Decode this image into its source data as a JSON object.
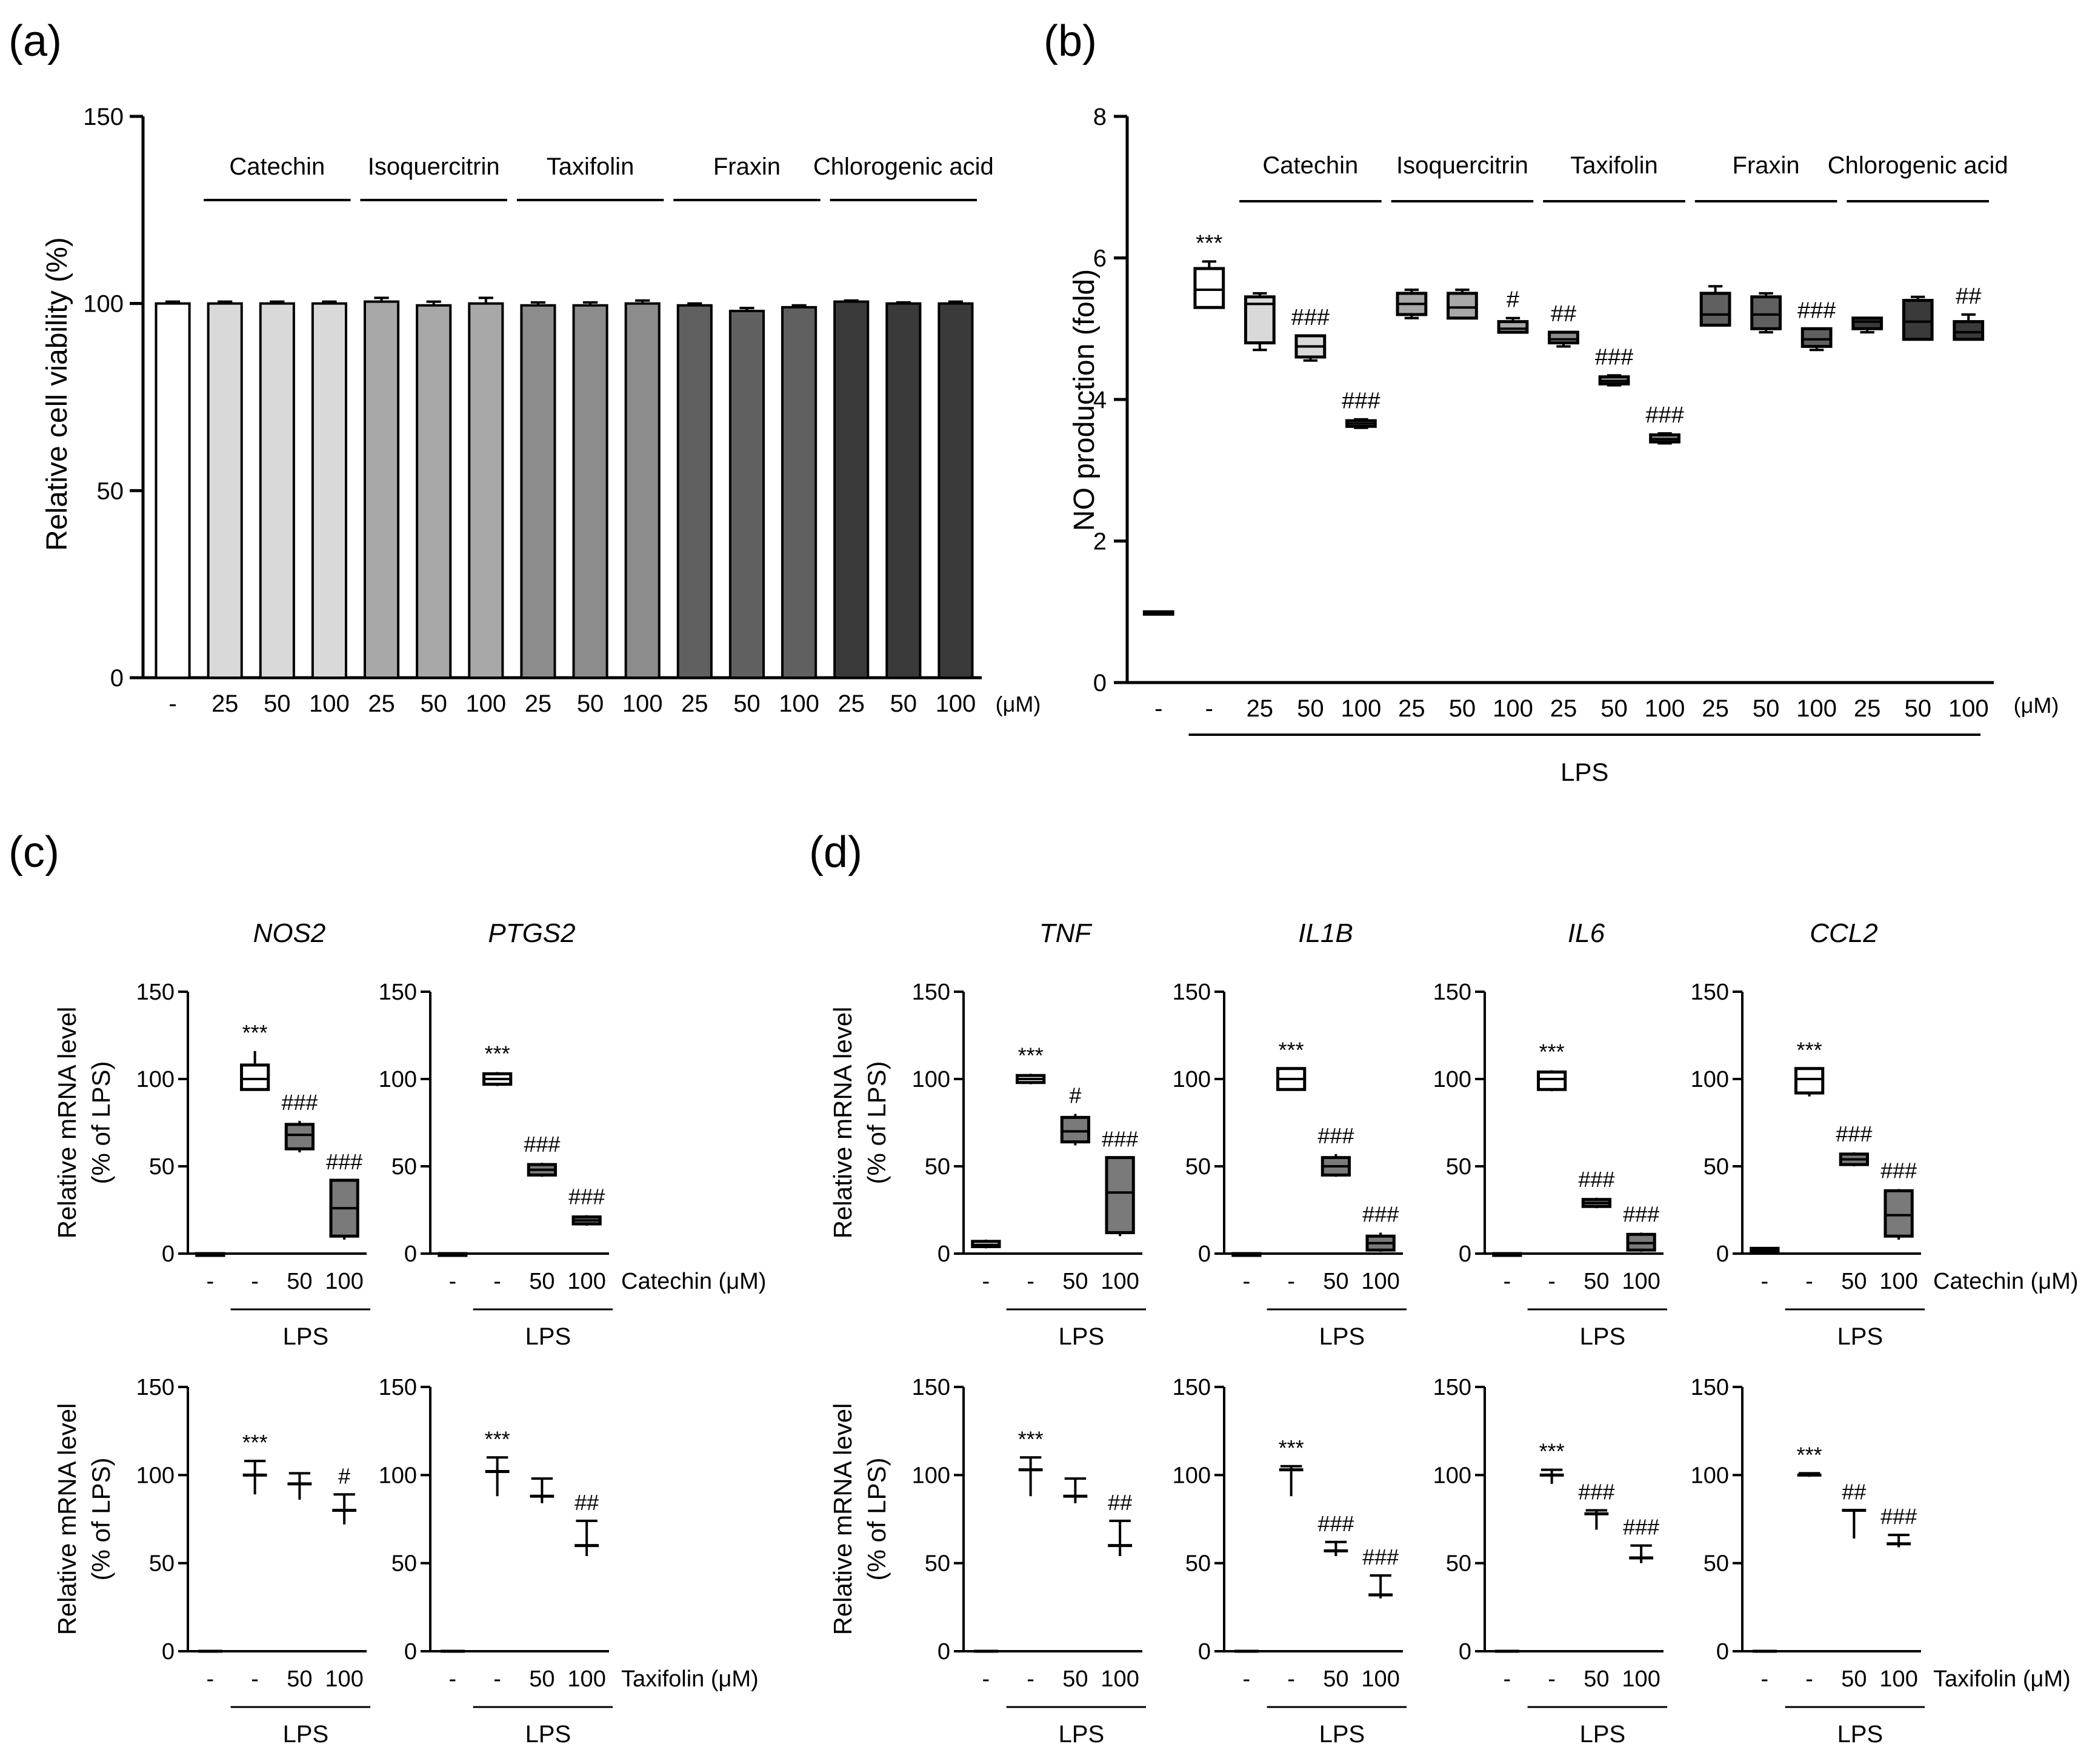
{
  "panels": {
    "a": "(a)",
    "b": "(b)",
    "c": "(c)",
    "d": "(d)"
  },
  "chart_data": [
    {
      "id": "a",
      "type": "bar",
      "ylabel": "Relative cell viability (%)",
      "ylim": [
        0,
        150
      ],
      "yticks": [
        0,
        50,
        100,
        150
      ],
      "unit": "(μM)",
      "categories": [
        "-",
        "25",
        "50",
        "100",
        "25",
        "50",
        "100",
        "25",
        "50",
        "100",
        "25",
        "50",
        "100",
        "25",
        "50",
        "100"
      ],
      "values": [
        100,
        100,
        100,
        100,
        100.5,
        99.5,
        100,
        99.5,
        99.5,
        100,
        99.5,
        98,
        99,
        100.5,
        100,
        100
      ],
      "errors": [
        0.5,
        0.5,
        0.5,
        0.5,
        1.0,
        1.0,
        1.5,
        0.8,
        0.8,
        0.8,
        0.5,
        0.8,
        0.5,
        0.3,
        0.3,
        0.5
      ],
      "groups": [
        "Catechin",
        "Isoquercitrin",
        "Taxifolin",
        "Fraxin",
        "Chlorogenic acid"
      ],
      "colors": [
        "#ffffff",
        "#d9d9d9",
        "#d9d9d9",
        "#d9d9d9",
        "#a8a8a8",
        "#a8a8a8",
        "#a8a8a8",
        "#8c8c8c",
        "#8c8c8c",
        "#8c8c8c",
        "#606060",
        "#606060",
        "#606060",
        "#3a3a3a",
        "#3a3a3a",
        "#3a3a3a"
      ]
    },
    {
      "id": "b",
      "type": "box",
      "ylabel": "NO production  (fold)",
      "ylim": [
        0,
        8
      ],
      "yticks": [
        0,
        2,
        4,
        6,
        8
      ],
      "unit": "(μM)",
      "lps_label": "LPS",
      "categories": [
        "-",
        "-",
        "25",
        "50",
        "100",
        "25",
        "50",
        "100",
        "25",
        "50",
        "100",
        "25",
        "50",
        "100",
        "25",
        "50",
        "100"
      ],
      "boxes": [
        {
          "min": 1.0,
          "q1": 1.0,
          "med": 1.0,
          "q3": 1.0,
          "max": 1.0,
          "color": "#ffffff",
          "sig": ""
        },
        {
          "min": 5.3,
          "q1": 5.3,
          "med": 5.55,
          "q3": 5.85,
          "max": 5.95,
          "color": "#ffffff",
          "sig": "***"
        },
        {
          "min": 4.7,
          "q1": 4.8,
          "med": 5.35,
          "q3": 5.45,
          "max": 5.5,
          "color": "#d9d9d9",
          "sig": ""
        },
        {
          "min": 4.55,
          "q1": 4.6,
          "med": 4.75,
          "q3": 4.9,
          "max": 4.9,
          "color": "#d9d9d9",
          "sig": "###"
        },
        {
          "min": 3.6,
          "q1": 3.62,
          "med": 3.66,
          "q3": 3.7,
          "max": 3.72,
          "color": "#d9d9d9",
          "sig": "###"
        },
        {
          "min": 5.15,
          "q1": 5.2,
          "med": 5.35,
          "q3": 5.5,
          "max": 5.55,
          "color": "#a8a8a8",
          "sig": ""
        },
        {
          "min": 5.15,
          "q1": 5.15,
          "med": 5.3,
          "q3": 5.5,
          "max": 5.55,
          "color": "#a8a8a8",
          "sig": ""
        },
        {
          "min": 4.95,
          "q1": 4.95,
          "med": 5.0,
          "q3": 5.1,
          "max": 5.15,
          "color": "#a8a8a8",
          "sig": "#"
        },
        {
          "min": 4.75,
          "q1": 4.8,
          "med": 4.85,
          "q3": 4.95,
          "max": 4.95,
          "color": "#8c8c8c",
          "sig": "##"
        },
        {
          "min": 4.2,
          "q1": 4.22,
          "med": 4.26,
          "q3": 4.32,
          "max": 4.34,
          "color": "#8c8c8c",
          "sig": "###"
        },
        {
          "min": 3.38,
          "q1": 3.4,
          "med": 3.44,
          "q3": 3.5,
          "max": 3.52,
          "color": "#8c8c8c",
          "sig": "###"
        },
        {
          "min": 5.05,
          "q1": 5.05,
          "med": 5.2,
          "q3": 5.5,
          "max": 5.6,
          "color": "#606060",
          "sig": ""
        },
        {
          "min": 4.95,
          "q1": 5.0,
          "med": 5.2,
          "q3": 5.45,
          "max": 5.5,
          "color": "#606060",
          "sig": ""
        },
        {
          "min": 4.7,
          "q1": 4.75,
          "med": 4.85,
          "q3": 5.0,
          "max": 5.0,
          "color": "#606060",
          "sig": "###"
        },
        {
          "min": 4.95,
          "q1": 5.0,
          "med": 5.1,
          "q3": 5.15,
          "max": 5.15,
          "color": "#3a3a3a",
          "sig": ""
        },
        {
          "min": 4.85,
          "q1": 4.85,
          "med": 5.1,
          "q3": 5.4,
          "max": 5.45,
          "color": "#3a3a3a",
          "sig": ""
        },
        {
          "min": 4.85,
          "q1": 4.85,
          "med": 4.95,
          "q3": 5.1,
          "max": 5.2,
          "color": "#3a3a3a",
          "sig": "##"
        }
      ],
      "groups": [
        "Catechin",
        "Isoquercitrin",
        "Taxifolin",
        "Fraxin",
        "Chlorogenic acid"
      ]
    }
  ],
  "small_plots": {
    "ylabel1": "Relative mRNA level",
    "ylabel2": "(% of LPS)",
    "ylim": [
      0,
      150
    ],
    "yticks": [
      0,
      50,
      100,
      150
    ],
    "xlabels": [
      "-",
      "-",
      "50",
      "100"
    ],
    "lps_label": "LPS",
    "catechin_unit": "Catechin (μM)",
    "taxifolin_unit": "Taxifolin (μM)",
    "plots": [
      {
        "title": "NOS2",
        "row": "catechin",
        "boxes": [
          {
            "min": 0,
            "q1": 0,
            "med": 0,
            "q3": 0,
            "max": 0,
            "fill": "#ffffff"
          },
          {
            "min": 94,
            "q1": 94,
            "med": 100,
            "q3": 108,
            "max": 116,
            "fill": "#ffffff"
          },
          {
            "min": 58,
            "q1": 60,
            "med": 68,
            "q3": 74,
            "max": 76,
            "fill": "#7a7a7a"
          },
          {
            "min": 8,
            "q1": 10,
            "med": 26,
            "q3": 42,
            "max": 42,
            "fill": "#7a7a7a"
          }
        ],
        "sigs": [
          "",
          "***",
          "###",
          "###"
        ]
      },
      {
        "title": "PTGS2",
        "row": "catechin",
        "boxes": [
          {
            "min": 0,
            "q1": 0,
            "med": 0,
            "q3": 0,
            "max": 0,
            "fill": "#ffffff"
          },
          {
            "min": 96,
            "q1": 97,
            "med": 100,
            "q3": 103,
            "max": 104,
            "fill": "#ffffff"
          },
          {
            "min": 44,
            "q1": 45,
            "med": 48,
            "q3": 51,
            "max": 52,
            "fill": "#7a7a7a"
          },
          {
            "min": 16,
            "q1": 17,
            "med": 19,
            "q3": 21,
            "max": 22,
            "fill": "#7a7a7a"
          }
        ],
        "sigs": [
          "",
          "***",
          "###",
          "###"
        ]
      },
      {
        "title": "NOS2",
        "row": "taxifolin",
        "showTitle": false,
        "type": "errbar",
        "points": [
          {
            "mean": 0,
            "lo": 0,
            "hi": 0
          },
          {
            "mean": 100,
            "lo": 89,
            "hi": 108
          },
          {
            "mean": 95,
            "lo": 86,
            "hi": 101
          },
          {
            "mean": 80,
            "lo": 72,
            "hi": 89
          }
        ],
        "sigs": [
          "",
          "***",
          "",
          "#"
        ]
      },
      {
        "title": "PTGS2",
        "row": "taxifolin",
        "showTitle": false,
        "type": "errbar",
        "points": [
          {
            "mean": 0,
            "lo": 0,
            "hi": 0
          },
          {
            "mean": 102,
            "lo": 88,
            "hi": 110
          },
          {
            "mean": 88,
            "lo": 84,
            "hi": 98
          },
          {
            "mean": 60,
            "lo": 54,
            "hi": 74
          }
        ],
        "sigs": [
          "",
          "***",
          "",
          "##"
        ]
      },
      {
        "title": "TNF",
        "row": "catechin",
        "boxes": [
          {
            "min": 3,
            "q1": 4,
            "med": 5,
            "q3": 7,
            "max": 8,
            "fill": "#ffffff"
          },
          {
            "min": 97,
            "q1": 98,
            "med": 100,
            "q3": 102,
            "max": 103,
            "fill": "#ffffff"
          },
          {
            "min": 62,
            "q1": 64,
            "med": 70,
            "q3": 78,
            "max": 80,
            "fill": "#7a7a7a"
          },
          {
            "min": 10,
            "q1": 12,
            "med": 35,
            "q3": 55,
            "max": 55,
            "fill": "#7a7a7a"
          }
        ],
        "sigs": [
          "",
          "***",
          "#",
          "###"
        ]
      },
      {
        "title": "IL1B",
        "row": "catechin",
        "boxes": [
          {
            "min": 0,
            "q1": 0,
            "med": 0,
            "q3": 0,
            "max": 0,
            "fill": "#ffffff"
          },
          {
            "min": 94,
            "q1": 94,
            "med": 100,
            "q3": 106,
            "max": 106,
            "fill": "#ffffff"
          },
          {
            "min": 44,
            "q1": 45,
            "med": 50,
            "q3": 55,
            "max": 57,
            "fill": "#7a7a7a"
          },
          {
            "min": 1,
            "q1": 2,
            "med": 6,
            "q3": 10,
            "max": 12,
            "fill": "#7a7a7a"
          }
        ],
        "sigs": [
          "",
          "***",
          "###",
          "###"
        ]
      },
      {
        "title": "IL6",
        "row": "catechin",
        "boxes": [
          {
            "min": 0,
            "q1": 0,
            "med": 0,
            "q3": 0,
            "max": 0,
            "fill": "#ffffff"
          },
          {
            "min": 93,
            "q1": 94,
            "med": 100,
            "q3": 104,
            "max": 105,
            "fill": "#ffffff"
          },
          {
            "min": 26,
            "q1": 27,
            "med": 29,
            "q3": 31,
            "max": 32,
            "fill": "#7a7a7a"
          },
          {
            "min": 1,
            "q1": 2,
            "med": 6,
            "q3": 11,
            "max": 12,
            "fill": "#7a7a7a"
          }
        ],
        "sigs": [
          "",
          "***",
          "###",
          "###"
        ]
      },
      {
        "title": "CCL2",
        "row": "catechin",
        "boxes": [
          {
            "min": 1,
            "q1": 1,
            "med": 2,
            "q3": 3,
            "max": 3,
            "fill": "#ffffff"
          },
          {
            "min": 90,
            "q1": 92,
            "med": 100,
            "q3": 106,
            "max": 106,
            "fill": "#ffffff"
          },
          {
            "min": 50,
            "q1": 51,
            "med": 54,
            "q3": 57,
            "max": 58,
            "fill": "#7a7a7a"
          },
          {
            "min": 8,
            "q1": 10,
            "med": 22,
            "q3": 36,
            "max": 37,
            "fill": "#7a7a7a"
          }
        ],
        "sigs": [
          "",
          "***",
          "###",
          "###"
        ]
      },
      {
        "title": "TNF",
        "row": "taxifolin",
        "showTitle": false,
        "type": "errbar",
        "points": [
          {
            "mean": 0,
            "lo": 0,
            "hi": 0
          },
          {
            "mean": 103,
            "lo": 88,
            "hi": 110
          },
          {
            "mean": 88,
            "lo": 84,
            "hi": 98
          },
          {
            "mean": 60,
            "lo": 54,
            "hi": 74
          }
        ],
        "sigs": [
          "",
          "***",
          "",
          "##"
        ]
      },
      {
        "title": "IL1B",
        "row": "taxifolin",
        "showTitle": false,
        "type": "errbar",
        "points": [
          {
            "mean": 0,
            "lo": 0,
            "hi": 0
          },
          {
            "mean": 103,
            "lo": 88,
            "hi": 105
          },
          {
            "mean": 57,
            "lo": 54,
            "hi": 62
          },
          {
            "mean": 32,
            "lo": 30,
            "hi": 43
          }
        ],
        "sigs": [
          "",
          "***",
          "###",
          "###"
        ]
      },
      {
        "title": "IL6",
        "row": "taxifolin",
        "showTitle": false,
        "type": "errbar",
        "points": [
          {
            "mean": 0,
            "lo": 0,
            "hi": 0
          },
          {
            "mean": 100,
            "lo": 95,
            "hi": 103
          },
          {
            "mean": 78,
            "lo": 69,
            "hi": 80
          },
          {
            "mean": 53,
            "lo": 50,
            "hi": 60
          }
        ],
        "sigs": [
          "",
          "***",
          "###",
          "###"
        ]
      },
      {
        "title": "CCL2",
        "row": "taxifolin",
        "showTitle": false,
        "type": "errbar",
        "points": [
          {
            "mean": 0,
            "lo": 0,
            "hi": 0
          },
          {
            "mean": 100,
            "lo": 99,
            "hi": 101
          },
          {
            "mean": 80,
            "lo": 64,
            "hi": 80
          },
          {
            "mean": 61,
            "lo": 59,
            "hi": 66
          }
        ],
        "sigs": [
          "",
          "***",
          "##",
          "###"
        ]
      }
    ]
  }
}
